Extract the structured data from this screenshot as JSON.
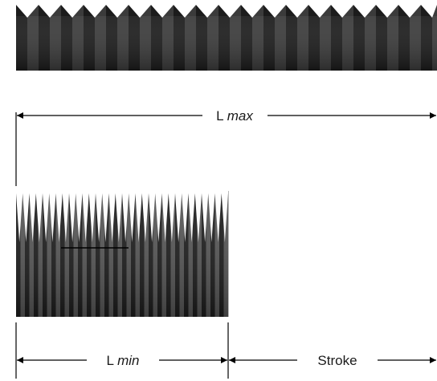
{
  "labels": {
    "l_max": {
      "prefix": "L ",
      "suffix": "max"
    },
    "l_min": {
      "prefix": "L ",
      "suffix": "min"
    },
    "stroke": "Stroke"
  },
  "colors": {
    "bellows_dark": "#1c1c1c",
    "bellows_mid": "#3b3b3b",
    "bellows_light": "#555555",
    "line": "#000000"
  }
}
